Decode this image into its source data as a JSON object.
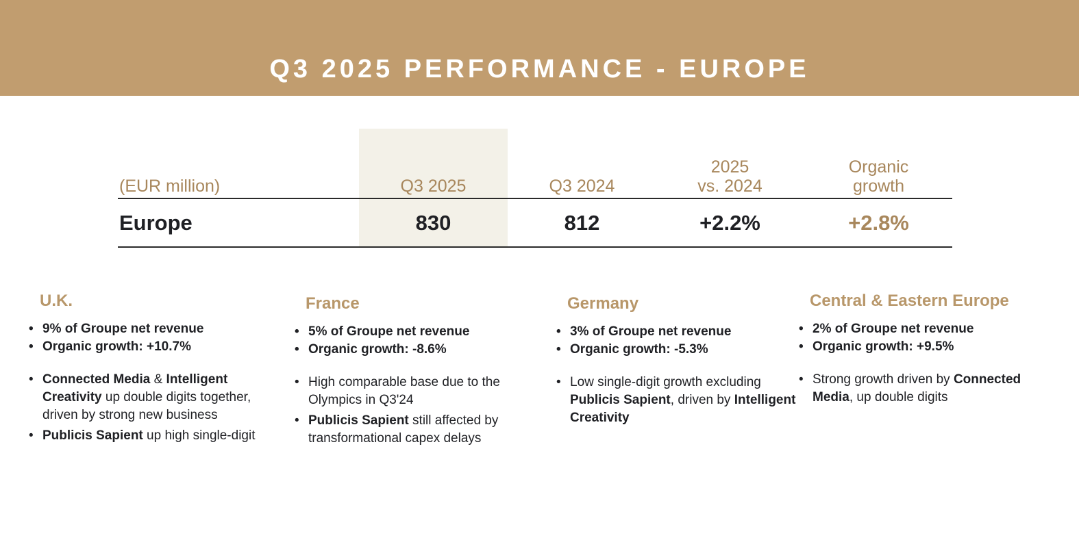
{
  "title": "Q3 2025 PERFORMANCE - EUROPE",
  "table": {
    "headers": [
      "(EUR million)",
      "Q3 2025",
      "Q3 2024",
      "2025\nvs. 2024",
      "Organic\ngrowth"
    ],
    "row": {
      "label": "Europe",
      "q3_2025": "830",
      "q3_2024": "812",
      "change": "+2.2%",
      "organic": "+2.8%"
    }
  },
  "colors": {
    "banner": "#C19D6F",
    "accent": "#A8875C",
    "highlight": "#F3F1E8"
  },
  "regions": [
    {
      "name": "U.K.",
      "kpis": [
        "9% of Groupe net revenue",
        "Organic growth: +10.7%"
      ],
      "notes": [
        [
          {
            "t": "Connected Media",
            "b": true
          },
          {
            "t": " & ",
            "b": false
          },
          {
            "t": "Intelligent Creativity",
            "b": true
          },
          {
            "t": " up double digits together, driven by strong new business",
            "b": false
          }
        ],
        [
          {
            "t": "Publicis Sapient",
            "b": true
          },
          {
            "t": " up high single-digit",
            "b": false
          }
        ]
      ]
    },
    {
      "name": "France",
      "kpis": [
        "5% of Groupe net revenue",
        "Organic growth: -8.6%"
      ],
      "notes": [
        [
          {
            "t": "High comparable base due to the Olympics in Q3'24",
            "b": false
          }
        ],
        [
          {
            "t": " Publicis Sapient",
            "b": true
          },
          {
            "t": " still affected by transformational capex delays",
            "b": false
          }
        ]
      ]
    },
    {
      "name": "Germany",
      "kpis": [
        "3% of Groupe net revenue",
        "Organic growth: -5.3%"
      ],
      "notes": [
        [
          {
            "t": "Low single-digit growth excluding ",
            "b": false
          },
          {
            "t": "Publicis Sapient",
            "b": true
          },
          {
            "t": ", driven by ",
            "b": false
          },
          {
            "t": "Intelligent Creativity",
            "b": true
          }
        ]
      ]
    },
    {
      "name": "Central & Eastern Europe",
      "kpis": [
        "2% of Groupe net revenue",
        "Organic growth: +9.5%"
      ],
      "notes": [
        [
          {
            "t": "Strong growth driven by ",
            "b": false
          },
          {
            "t": "Connected Media",
            "b": true
          },
          {
            "t": ", up double digits",
            "b": false
          }
        ]
      ]
    }
  ]
}
